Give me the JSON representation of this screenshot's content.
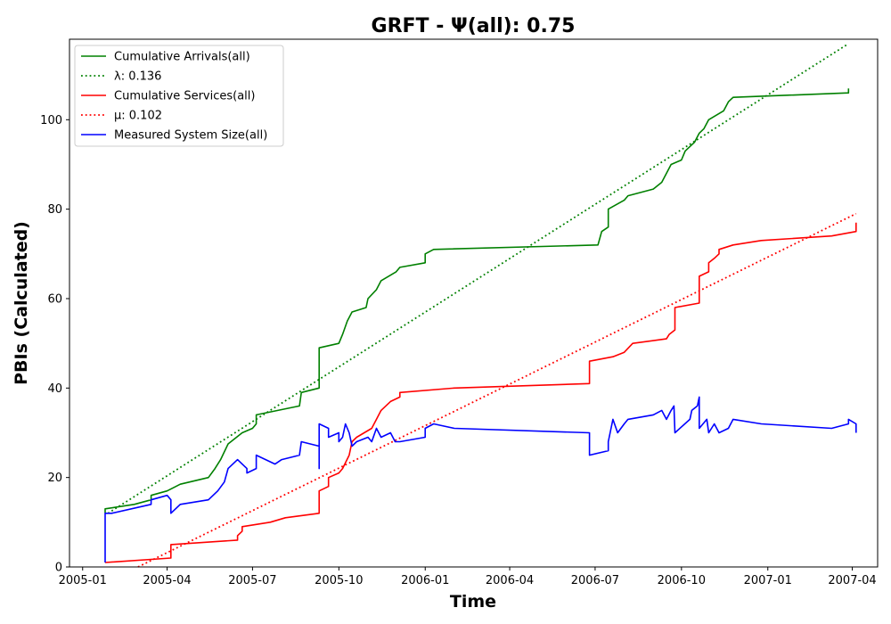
{
  "chart_data": {
    "type": "line",
    "title": "GRFT -  Ψ(all): 0.75",
    "xlabel": "Time",
    "ylabel": "PBIs (Calculated)",
    "xlim": [
      "2004-12-18",
      "2007-04-28"
    ],
    "ylim": [
      0,
      118
    ],
    "x_ticks": [
      "2005-01",
      "2005-04",
      "2005-07",
      "2005-10",
      "2006-01",
      "2006-04",
      "2006-07",
      "2006-10",
      "2007-01",
      "2007-04"
    ],
    "y_ticks": [
      0,
      20,
      40,
      60,
      80,
      100
    ],
    "grid": false,
    "legend_position": "top-left",
    "series": [
      {
        "name": "Cumulative Arrivals(all)",
        "color": "#008000",
        "style": "solid",
        "points": [
          [
            "2005-01-25",
            12
          ],
          [
            "2005-01-25",
            13
          ],
          [
            "2005-02-25",
            14
          ],
          [
            "2005-03-15",
            15
          ],
          [
            "2005-03-15",
            16
          ],
          [
            "2005-04-01",
            17
          ],
          [
            "2005-04-15",
            18.5
          ],
          [
            "2005-05-15",
            20
          ],
          [
            "2005-05-22",
            22
          ],
          [
            "2005-05-28",
            24
          ],
          [
            "2005-06-05",
            27.5
          ],
          [
            "2005-06-20",
            30
          ],
          [
            "2005-07-01",
            31
          ],
          [
            "2005-07-05",
            32
          ],
          [
            "2005-07-05",
            34
          ],
          [
            "2005-08-20",
            36
          ],
          [
            "2005-08-22",
            39
          ],
          [
            "2005-09-10",
            40
          ],
          [
            "2005-09-10",
            49
          ],
          [
            "2005-10-01",
            50
          ],
          [
            "2005-10-05",
            52
          ],
          [
            "2005-10-10",
            55
          ],
          [
            "2005-10-15",
            57
          ],
          [
            "2005-10-30",
            58
          ],
          [
            "2005-11-01",
            60
          ],
          [
            "2005-11-10",
            62
          ],
          [
            "2005-11-15",
            64
          ],
          [
            "2005-12-01",
            66
          ],
          [
            "2005-12-05",
            67
          ],
          [
            "2006-01-01",
            68
          ],
          [
            "2006-01-01",
            70
          ],
          [
            "2006-01-10",
            71
          ],
          [
            "2006-07-04",
            72
          ],
          [
            "2006-07-08",
            75
          ],
          [
            "2006-07-15",
            76
          ],
          [
            "2006-07-15",
            80
          ],
          [
            "2006-08-01",
            82
          ],
          [
            "2006-08-05",
            83
          ],
          [
            "2006-09-01",
            84.5
          ],
          [
            "2006-09-10",
            86
          ],
          [
            "2006-09-20",
            90
          ],
          [
            "2006-10-01",
            91
          ],
          [
            "2006-10-05",
            93
          ],
          [
            "2006-10-15",
            95
          ],
          [
            "2006-10-20",
            97
          ],
          [
            "2006-10-25",
            98
          ],
          [
            "2006-10-30",
            100
          ],
          [
            "2006-11-15",
            102
          ],
          [
            "2006-11-20",
            104
          ],
          [
            "2006-11-25",
            105
          ],
          [
            "2007-03-28",
            106
          ],
          [
            "2007-03-28",
            107
          ]
        ]
      },
      {
        "name": "λ: 0.136",
        "color": "#008000",
        "style": "dotted",
        "points": [
          [
            "2005-01-28",
            12
          ],
          [
            "2007-03-28",
            117
          ]
        ]
      },
      {
        "name": "Cumulative Services(all)",
        "color": "#ff0000",
        "style": "solid",
        "points": [
          [
            "2005-01-25",
            1
          ],
          [
            "2005-04-05",
            2
          ],
          [
            "2005-04-05",
            5
          ],
          [
            "2005-06-15",
            6
          ],
          [
            "2005-06-15",
            7
          ],
          [
            "2005-06-20",
            8
          ],
          [
            "2005-06-20",
            9
          ],
          [
            "2005-07-20",
            10
          ],
          [
            "2005-08-05",
            11
          ],
          [
            "2005-09-10",
            12
          ],
          [
            "2005-09-10",
            17
          ],
          [
            "2005-09-20",
            18
          ],
          [
            "2005-09-20",
            20
          ],
          [
            "2005-10-01",
            21
          ],
          [
            "2005-10-05",
            22
          ],
          [
            "2005-10-12",
            25
          ],
          [
            "2005-10-15",
            28
          ],
          [
            "2005-10-20",
            29
          ],
          [
            "2005-11-05",
            31
          ],
          [
            "2005-11-10",
            33
          ],
          [
            "2005-11-15",
            35
          ],
          [
            "2005-11-20",
            36
          ],
          [
            "2005-11-25",
            37
          ],
          [
            "2005-12-05",
            38
          ],
          [
            "2005-12-05",
            39
          ],
          [
            "2006-02-01",
            40
          ],
          [
            "2006-06-25",
            41
          ],
          [
            "2006-06-25",
            46
          ],
          [
            "2006-07-20",
            47
          ],
          [
            "2006-08-01",
            48
          ],
          [
            "2006-08-10",
            50
          ],
          [
            "2006-09-15",
            51
          ],
          [
            "2006-09-18",
            52
          ],
          [
            "2006-09-24",
            53
          ],
          [
            "2006-09-24",
            58
          ],
          [
            "2006-10-20",
            59
          ],
          [
            "2006-10-20",
            65
          ],
          [
            "2006-10-30",
            66
          ],
          [
            "2006-10-30",
            68
          ],
          [
            "2006-11-05",
            69
          ],
          [
            "2006-11-10",
            70
          ],
          [
            "2006-11-10",
            71
          ],
          [
            "2006-11-25",
            72
          ],
          [
            "2006-12-25",
            73
          ],
          [
            "2007-03-10",
            74
          ],
          [
            "2007-04-05",
            75
          ],
          [
            "2007-04-05",
            77
          ]
        ]
      },
      {
        "name": "μ: 0.102",
        "color": "#ff0000",
        "style": "dotted",
        "points": [
          [
            "2005-03-01",
            0
          ],
          [
            "2007-04-05",
            79
          ]
        ]
      },
      {
        "name": "Measured System Size(all)",
        "color": "#0000ff",
        "style": "solid",
        "points": [
          [
            "2005-01-25",
            1
          ],
          [
            "2005-01-25",
            12
          ],
          [
            "2005-02-01",
            12
          ],
          [
            "2005-03-15",
            14
          ],
          [
            "2005-03-15",
            15
          ],
          [
            "2005-04-01",
            16
          ],
          [
            "2005-04-05",
            15
          ],
          [
            "2005-04-05",
            12
          ],
          [
            "2005-04-15",
            14
          ],
          [
            "2005-05-15",
            15
          ],
          [
            "2005-05-25",
            17
          ],
          [
            "2005-06-01",
            19
          ],
          [
            "2005-06-05",
            22
          ],
          [
            "2005-06-10",
            23
          ],
          [
            "2005-06-15",
            24
          ],
          [
            "2005-06-20",
            23
          ],
          [
            "2005-06-25",
            22
          ],
          [
            "2005-06-25",
            21
          ],
          [
            "2005-07-05",
            22
          ],
          [
            "2005-07-05",
            25
          ],
          [
            "2005-07-25",
            23
          ],
          [
            "2005-08-01",
            24
          ],
          [
            "2005-08-20",
            25
          ],
          [
            "2005-08-22",
            28
          ],
          [
            "2005-09-10",
            27
          ],
          [
            "2005-09-10",
            22
          ],
          [
            "2005-09-10",
            32
          ],
          [
            "2005-09-20",
            31
          ],
          [
            "2005-09-20",
            29
          ],
          [
            "2005-10-01",
            30
          ],
          [
            "2005-10-01",
            28
          ],
          [
            "2005-10-05",
            29
          ],
          [
            "2005-10-08",
            32
          ],
          [
            "2005-10-12",
            30
          ],
          [
            "2005-10-15",
            27
          ],
          [
            "2005-10-20",
            28
          ],
          [
            "2005-11-01",
            29
          ],
          [
            "2005-11-05",
            28
          ],
          [
            "2005-11-10",
            31
          ],
          [
            "2005-11-15",
            29
          ],
          [
            "2005-11-25",
            30
          ],
          [
            "2005-11-30",
            28
          ],
          [
            "2005-12-05",
            28
          ],
          [
            "2006-01-01",
            29
          ],
          [
            "2006-01-01",
            31
          ],
          [
            "2006-01-10",
            32
          ],
          [
            "2006-02-01",
            31
          ],
          [
            "2006-06-25",
            30
          ],
          [
            "2006-06-25",
            25
          ],
          [
            "2006-07-15",
            26
          ],
          [
            "2006-07-15",
            28
          ],
          [
            "2006-07-20",
            33
          ],
          [
            "2006-07-25",
            30
          ],
          [
            "2006-08-01",
            32
          ],
          [
            "2006-08-05",
            33
          ],
          [
            "2006-09-01",
            34
          ],
          [
            "2006-09-10",
            35
          ],
          [
            "2006-09-15",
            33
          ],
          [
            "2006-09-20",
            35
          ],
          [
            "2006-09-23",
            36
          ],
          [
            "2006-09-24",
            30
          ],
          [
            "2006-10-10",
            33
          ],
          [
            "2006-10-12",
            35
          ],
          [
            "2006-10-18",
            36
          ],
          [
            "2006-10-20",
            38
          ],
          [
            "2006-10-20",
            31
          ],
          [
            "2006-10-28",
            33
          ],
          [
            "2006-10-30",
            30
          ],
          [
            "2006-11-05",
            32
          ],
          [
            "2006-11-10",
            30
          ],
          [
            "2006-11-20",
            31
          ],
          [
            "2006-11-25",
            33
          ],
          [
            "2006-12-25",
            32
          ],
          [
            "2007-03-10",
            31
          ],
          [
            "2007-03-28",
            32
          ],
          [
            "2007-03-28",
            33
          ],
          [
            "2007-04-05",
            32
          ],
          [
            "2007-04-05",
            30
          ]
        ]
      }
    ]
  }
}
